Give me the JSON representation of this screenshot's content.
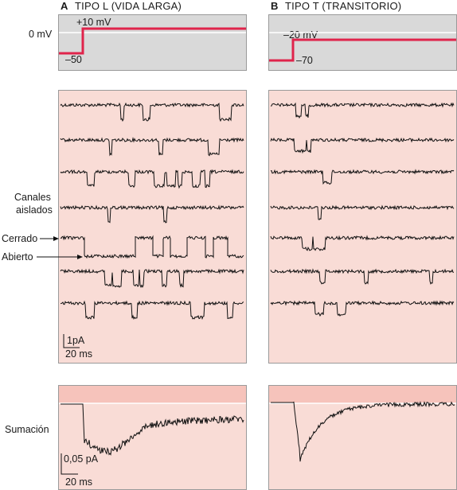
{
  "panel_a": {
    "letter": "A",
    "title": "TIPO L (VIDA LARGA)",
    "step_high": "+10 mV",
    "step_low": "–50",
    "zero_label": "0 mV",
    "scale_current": "1pA",
    "scale_time": "20 ms",
    "sum_scale_current": "0,05 pA",
    "sum_scale_time": "20 ms"
  },
  "panel_b": {
    "letter": "B",
    "title": "TIPO T (TRANSITORIO)",
    "step_high": "–20 mV",
    "step_low": "–70"
  },
  "side_labels": {
    "channels_line1": "Canales",
    "channels_line2": "aislados",
    "closed": "Cerrado",
    "open": "Abierto",
    "summation": "Sumación"
  },
  "colors": {
    "step_line": "#e0244b",
    "voltage_bg": "#d9d9d9",
    "trace_bg": "#f9dcd6",
    "summation_band": "#f6c3bb",
    "trace": "#111111",
    "zero_line": "#ffffff"
  }
}
